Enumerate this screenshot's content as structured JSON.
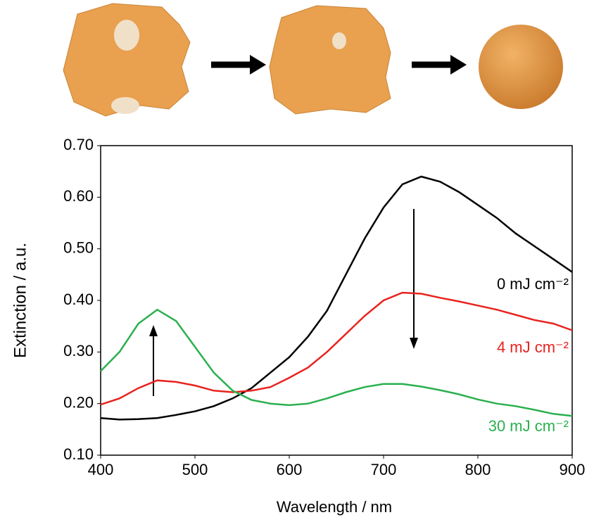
{
  "chart_data": {
    "type": "line",
    "x_label": "Wavelength / nm",
    "y_label": "Extinction / a.u.",
    "x": [
      400,
      420,
      440,
      460,
      480,
      500,
      520,
      540,
      560,
      580,
      600,
      620,
      640,
      660,
      680,
      700,
      720,
      740,
      760,
      780,
      800,
      820,
      840,
      860,
      880,
      900
    ],
    "series": [
      {
        "name": "0 mJ cm⁻²",
        "color": "#000000",
        "values": [
          0.172,
          0.169,
          0.17,
          0.172,
          0.178,
          0.185,
          0.195,
          0.21,
          0.23,
          0.26,
          0.29,
          0.33,
          0.38,
          0.45,
          0.52,
          0.58,
          0.625,
          0.64,
          0.63,
          0.61,
          0.585,
          0.56,
          0.53,
          0.505,
          0.48,
          0.455
        ]
      },
      {
        "name": "4 mJ cm⁻²",
        "color": "#e8231f",
        "values": [
          0.198,
          0.21,
          0.23,
          0.245,
          0.242,
          0.235,
          0.225,
          0.222,
          0.225,
          0.232,
          0.25,
          0.27,
          0.3,
          0.335,
          0.37,
          0.4,
          0.415,
          0.413,
          0.405,
          0.398,
          0.39,
          0.382,
          0.372,
          0.362,
          0.355,
          0.342
        ]
      },
      {
        "name": "30 mJ cm⁻²",
        "color": "#2ab04f",
        "values": [
          0.263,
          0.3,
          0.355,
          0.382,
          0.36,
          0.31,
          0.26,
          0.225,
          0.207,
          0.2,
          0.197,
          0.2,
          0.21,
          0.222,
          0.232,
          0.238,
          0.238,
          0.233,
          0.226,
          0.218,
          0.208,
          0.2,
          0.195,
          0.188,
          0.18,
          0.176
        ]
      }
    ],
    "xlim": [
      400,
      900
    ],
    "ylim": [
      0.1,
      0.7
    ],
    "xticks": [
      400,
      500,
      600,
      700,
      800,
      900
    ],
    "yticks": [
      {
        "value": 0.1,
        "label": "0.10"
      },
      {
        "value": 0.2,
        "label": "0.20"
      },
      {
        "value": 0.3,
        "label": "0.30"
      },
      {
        "value": 0.4,
        "label": "0.40"
      },
      {
        "value": 0.5,
        "label": "0.50"
      },
      {
        "value": 0.6,
        "label": "0.60"
      },
      {
        "value": 0.7,
        "label": "0.70"
      }
    ],
    "grid": false
  }
}
